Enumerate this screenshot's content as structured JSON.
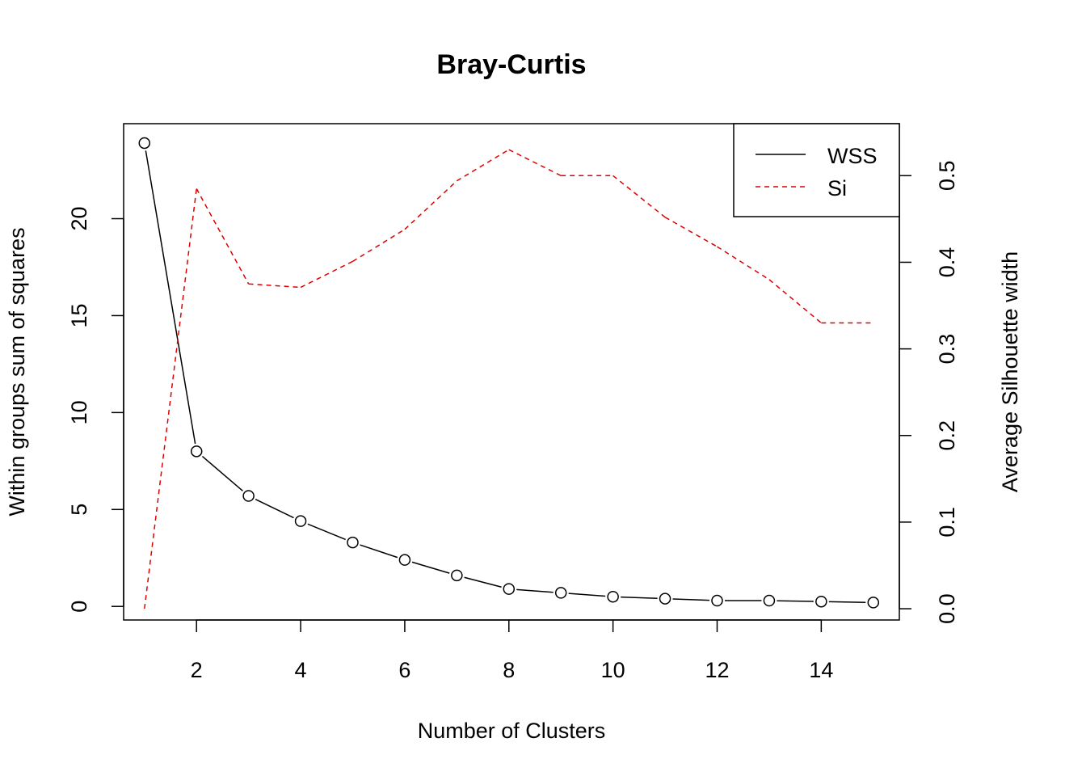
{
  "chart_data": {
    "type": "line",
    "title": "Bray-Curtis",
    "xlabel": "Number of Clusters",
    "ylabel": "Within groups sum of squares",
    "y2label": "Average Silhouette width",
    "xlim": [
      0.6,
      15.5
    ],
    "ylim": [
      -0.7,
      24.9
    ],
    "y2lim": [
      -0.013,
      0.56
    ],
    "x": [
      1,
      2,
      3,
      4,
      5,
      6,
      7,
      8,
      9,
      10,
      11,
      12,
      13,
      14,
      15
    ],
    "x_ticks": [
      "2",
      "4",
      "6",
      "8",
      "10",
      "12",
      "14"
    ],
    "y_ticks": [
      "0",
      "5",
      "10",
      "15",
      "20"
    ],
    "y2_ticks": [
      "0.0",
      "0.1",
      "0.2",
      "0.3",
      "0.4",
      "0.5"
    ],
    "grid": false,
    "legend_position": "top-right",
    "series": [
      {
        "name": "WSS",
        "axis": "left",
        "color": "#000000",
        "line_style": "solid",
        "markers": "open-circle",
        "values": [
          23.9,
          8.0,
          5.7,
          4.4,
          3.3,
          2.4,
          1.6,
          0.9,
          0.7,
          0.5,
          0.4,
          0.3,
          0.3,
          0.25,
          0.2
        ]
      },
      {
        "name": "Si",
        "axis": "right",
        "color": "#DF0000",
        "line_style": "dashed",
        "markers": "none",
        "values": [
          0.0,
          0.485,
          0.375,
          0.371,
          0.401,
          0.438,
          0.494,
          0.53,
          0.5,
          0.5,
          0.452,
          0.418,
          0.38,
          0.33,
          0.33
        ]
      }
    ]
  }
}
